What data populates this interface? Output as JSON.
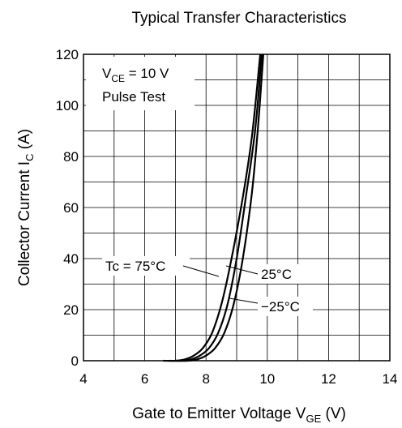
{
  "chart_data": {
    "type": "line",
    "title": "Typical Transfer Characteristics",
    "xlabel": {
      "main": "Gate to Emitter Voltage  V",
      "sub": "GE",
      "unit": " (V)"
    },
    "ylabel": {
      "main": "Collector Current  I",
      "sub": "C",
      "unit": "  (A)"
    },
    "xlim": [
      4,
      14
    ],
    "ylim": [
      0,
      120
    ],
    "xticks": [
      4,
      6,
      8,
      10,
      12,
      14
    ],
    "yticks": [
      0,
      20,
      40,
      60,
      80,
      100,
      120
    ],
    "grid": true,
    "conditions": [
      {
        "prefix": "V",
        "sub": "CE",
        "suffix": " = 10 V"
      },
      {
        "prefix": "Pulse Test",
        "sub": "",
        "suffix": ""
      }
    ],
    "series": [
      {
        "name": "Tc = 75°C",
        "x": [
          6.6,
          7.0,
          7.3,
          7.6,
          7.9,
          8.2,
          8.5,
          8.8,
          9.2,
          9.5,
          9.77
        ],
        "y": [
          0,
          0,
          0.5,
          2,
          5,
          11,
          22,
          38,
          64,
          88,
          120
        ]
      },
      {
        "name": "25°C",
        "x": [
          6.8,
          7.2,
          7.5,
          7.8,
          8.1,
          8.4,
          8.7,
          9.0,
          9.3,
          9.6,
          9.82
        ],
        "y": [
          0,
          0,
          0.5,
          2,
          5,
          11,
          22,
          40,
          64,
          90,
          120
        ]
      },
      {
        "name": "−25°C",
        "x": [
          7.0,
          7.4,
          7.7,
          8.0,
          8.3,
          8.6,
          8.9,
          9.2,
          9.5,
          9.7,
          9.87
        ],
        "y": [
          0,
          0,
          0.5,
          2,
          5,
          11,
          22,
          40,
          66,
          92,
          120
        ]
      }
    ]
  }
}
